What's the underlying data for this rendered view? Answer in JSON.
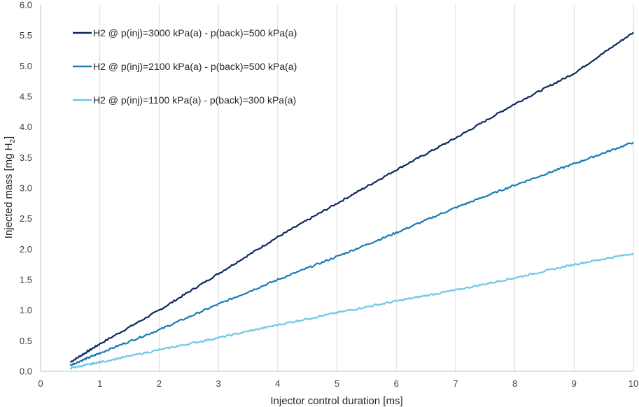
{
  "chart_data": {
    "type": "line",
    "title": "",
    "xlabel": "Injector control duration [ms]",
    "ylabel_main": "Injected mass [mg H",
    "ylabel_sub": "2",
    "ylabel_end": "]",
    "xlim": [
      0,
      10
    ],
    "ylim": [
      0,
      6
    ],
    "x_ticks": [
      "0",
      "1",
      "2",
      "3",
      "4",
      "5",
      "6",
      "7",
      "8",
      "9",
      "10"
    ],
    "y_ticks": [
      "0.0",
      "0.5",
      "1.0",
      "1.5",
      "2.0",
      "2.5",
      "3.0",
      "3.5",
      "4.0",
      "4.5",
      "5.0",
      "5.5",
      "6.0"
    ],
    "grid": "vertical",
    "legend_position": "top-left",
    "series": [
      {
        "name": "H2 @ p(inj)=3000 kPa(a) - p(back)=500 kPa(a)",
        "color": "#0d2a5c",
        "points": [
          [
            0.5,
            0.15
          ],
          [
            1,
            0.45
          ],
          [
            2,
            1.0
          ],
          [
            3,
            1.6
          ],
          [
            4,
            2.2
          ],
          [
            5,
            2.75
          ],
          [
            6,
            3.3
          ],
          [
            7,
            3.82
          ],
          [
            8,
            4.38
          ],
          [
            9,
            4.88
          ],
          [
            10,
            5.55
          ]
        ]
      },
      {
        "name": "H2 @ p(inj)=2100 kPa(a) - p(back)=500 kPa(a)",
        "color": "#1a7bb5",
        "points": [
          [
            0.5,
            0.1
          ],
          [
            1,
            0.3
          ],
          [
            2,
            0.68
          ],
          [
            3,
            1.1
          ],
          [
            4,
            1.5
          ],
          [
            5,
            1.88
          ],
          [
            6,
            2.27
          ],
          [
            7,
            2.68
          ],
          [
            8,
            3.05
          ],
          [
            9,
            3.4
          ],
          [
            10,
            3.75
          ]
        ]
      },
      {
        "name": "H2 @ p(inj)=1100 kPa(a) - p(back)=300 kPa(a)",
        "color": "#6dc8e8",
        "points": [
          [
            0.5,
            0.05
          ],
          [
            1,
            0.15
          ],
          [
            2,
            0.35
          ],
          [
            3,
            0.55
          ],
          [
            4,
            0.76
          ],
          [
            5,
            0.96
          ],
          [
            6,
            1.15
          ],
          [
            7,
            1.33
          ],
          [
            8,
            1.53
          ],
          [
            9,
            1.75
          ],
          [
            10,
            1.93
          ]
        ]
      }
    ]
  }
}
